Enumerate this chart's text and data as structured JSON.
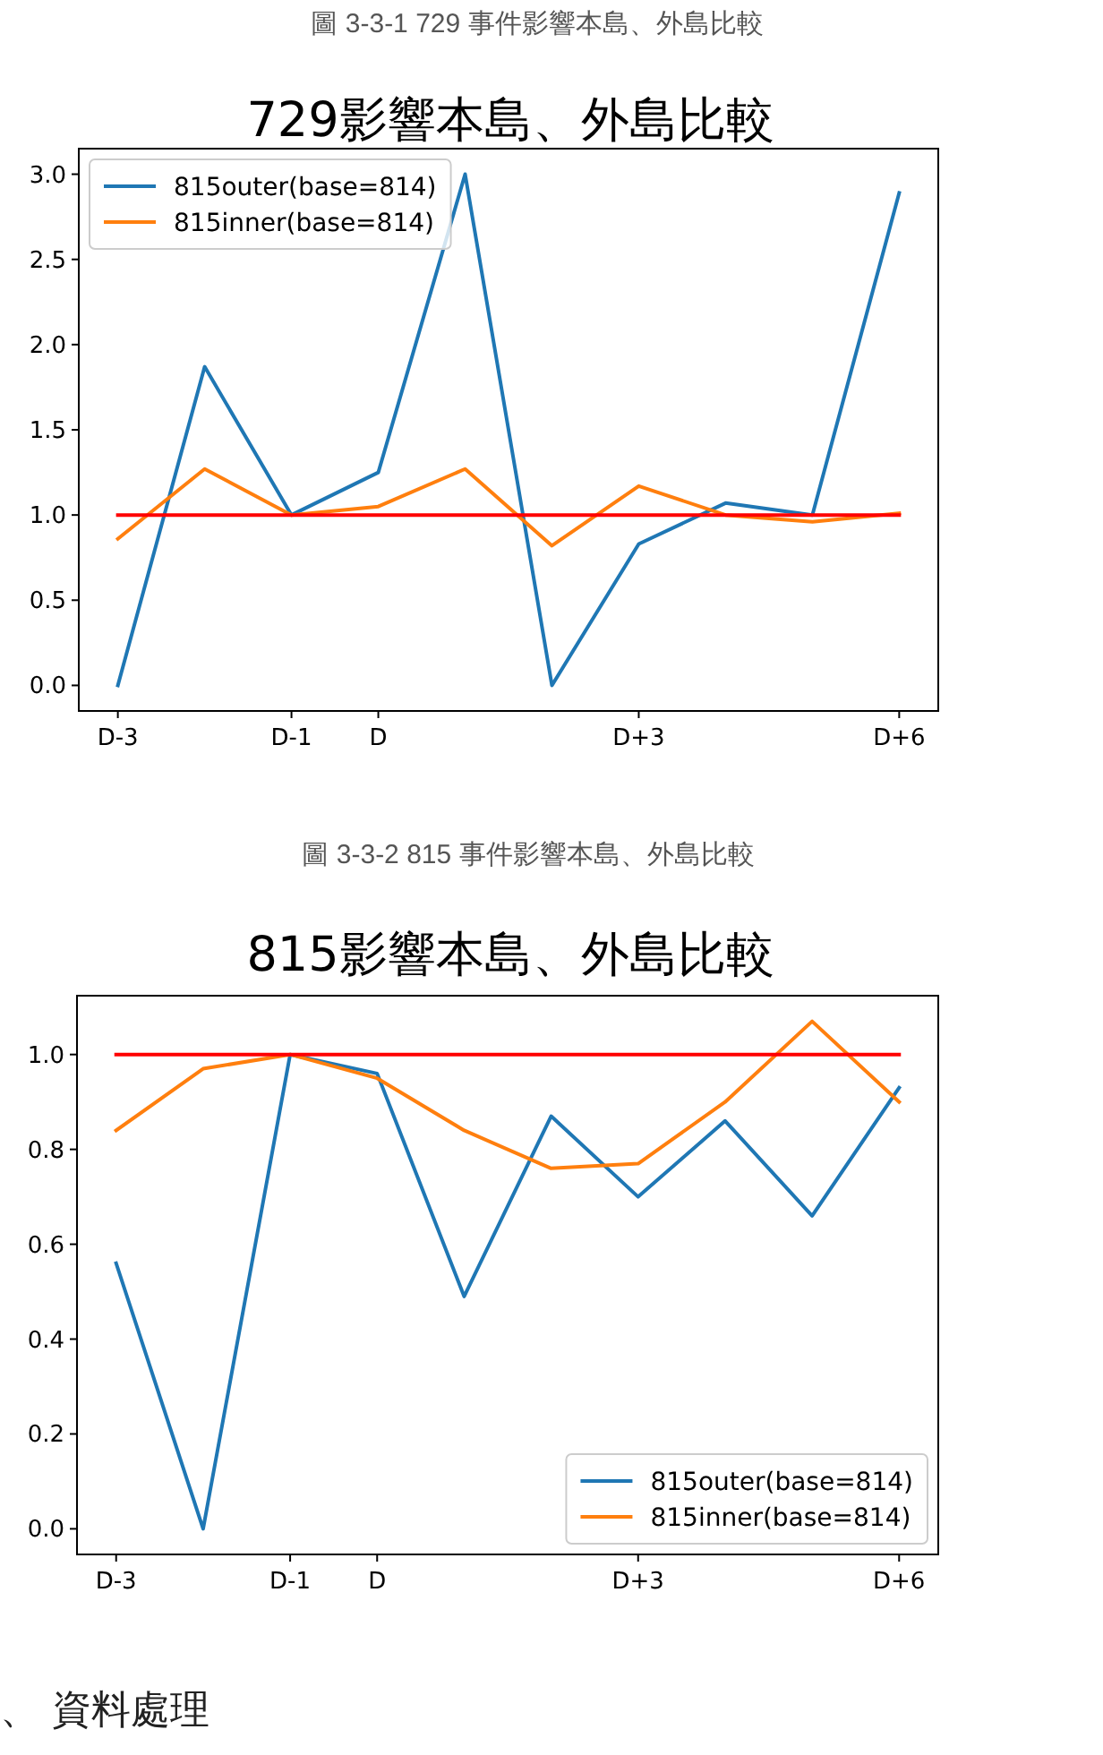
{
  "chart_data": [
    {
      "type": "line",
      "title": "729影響本島、外島比較",
      "annotations": [
        "圖 3-3-1 729 事件影響本島、外島比較"
      ],
      "categories": [
        "D-3",
        null,
        "D-1",
        "D",
        null,
        null,
        "D+3",
        null,
        null,
        "D+6"
      ],
      "series": [
        {
          "name": "815outer(base=814)",
          "color": "#1f77b4",
          "values": [
            0,
            1.87,
            1,
            1.25,
            3,
            0,
            0.83,
            1.07,
            1,
            2.89
          ]
        },
        {
          "name": "815inner(base=814)",
          "color": "#ff7f0e",
          "values": [
            0.86,
            1.27,
            1,
            1.05,
            1.27,
            0.82,
            1.17,
            1,
            0.96,
            1.01
          ]
        },
        {
          "color": "#ff0000",
          "values": [
            1,
            1,
            1,
            1,
            1,
            1,
            1,
            1,
            1,
            1
          ]
        }
      ],
      "ylim": [
        -0.15,
        3.15
      ],
      "yticks": [
        {
          "value": 0,
          "label": "0.0"
        },
        {
          "value": 0.5,
          "label": "0.5"
        },
        {
          "value": 1,
          "label": "1.0"
        },
        {
          "value": 1.5,
          "label": "1.5"
        },
        {
          "value": 2,
          "label": "2.0"
        },
        {
          "value": 2.5,
          "label": "2.5"
        },
        {
          "value": 3,
          "label": "3.0"
        }
      ],
      "legend": "top left",
      "line_style": "solid"
    },
    {
      "type": "line",
      "title": "815影響本島、外島比較",
      "annotations": [
        "圖 3-3-2 815 事件影響本島、外島比較",
        "、 資料處理"
      ],
      "categories": [
        "D-3",
        null,
        "D-1",
        "D",
        null,
        null,
        "D+3",
        null,
        null,
        "D+6"
      ],
      "series": [
        {
          "name": "815outer(base=814)",
          "color": "#1f77b4",
          "values": [
            0.56,
            0,
            1,
            0.96,
            0.49,
            0.87,
            0.7,
            0.86,
            0.66,
            0.93
          ]
        },
        {
          "name": "815inner(base=814)",
          "color": "#ff7f0e",
          "values": [
            0.84,
            0.97,
            1,
            0.95,
            0.84,
            0.76,
            0.77,
            0.9,
            1.07,
            0.9
          ]
        },
        {
          "color": "#ff0000",
          "values": [
            1,
            1,
            1,
            1,
            1,
            1,
            1,
            1,
            1,
            1
          ]
        }
      ],
      "ylim": [
        -0.054,
        1.124
      ],
      "yticks": [
        {
          "value": 0,
          "label": "0.0"
        },
        {
          "value": 0.2,
          "label": "0.2"
        },
        {
          "value": 0.4,
          "label": "0.4"
        },
        {
          "value": 0.6,
          "label": "0.6"
        },
        {
          "value": 0.8,
          "label": "0.8"
        },
        {
          "value": 1,
          "label": "1.0"
        }
      ],
      "legend": "bottom right",
      "line_style": "solid"
    }
  ]
}
